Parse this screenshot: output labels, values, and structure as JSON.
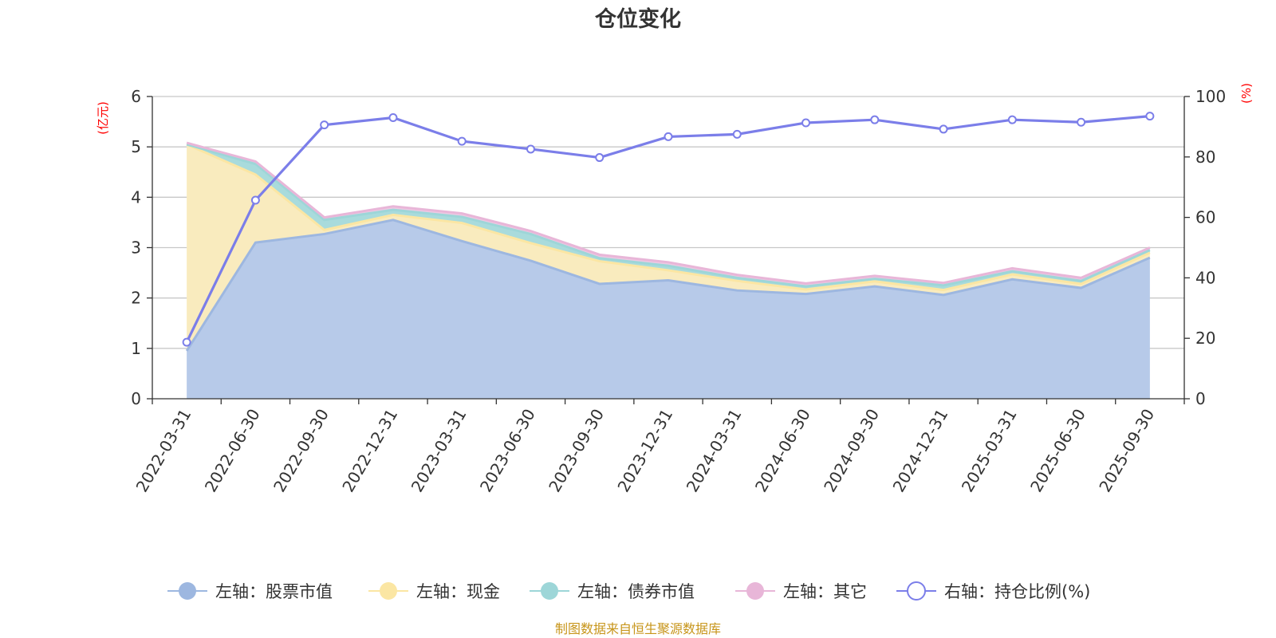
{
  "chart_data": {
    "type": "area",
    "title": "仓位变化",
    "source": "制图数据来自恒生聚源数据库",
    "categories": [
      "2022-03-31",
      "2022-06-30",
      "2022-09-30",
      "2022-12-31",
      "2023-03-31",
      "2023-06-30",
      "2023-09-30",
      "2023-12-31",
      "2024-03-31",
      "2024-06-30",
      "2024-09-30",
      "2024-12-31",
      "2025-03-31",
      "2025-06-30",
      "2025-09-30"
    ],
    "left_axis": {
      "unit": "(亿元)",
      "ylim": [
        0,
        6
      ],
      "ticks": [
        "0",
        "1",
        "2",
        "3",
        "4",
        "5",
        "6"
      ]
    },
    "right_axis": {
      "unit": "(%)",
      "ylim": [
        0,
        100
      ],
      "ticks": [
        "0",
        "20",
        "40",
        "60",
        "80",
        "100"
      ]
    },
    "series": [
      {
        "name": "左轴：股票市值",
        "axis": "left",
        "stack": true,
        "color": "#9db7e0",
        "fill": "#b7cae9",
        "values": [
          0.95,
          3.1,
          3.27,
          3.55,
          3.13,
          2.74,
          2.28,
          2.35,
          2.15,
          2.08,
          2.23,
          2.06,
          2.37,
          2.2,
          2.8
        ]
      },
      {
        "name": "左轴：现金",
        "axis": "left",
        "stack": true,
        "color": "#fbe6a3",
        "fill": "#f9ebbe",
        "values": [
          4.1,
          1.35,
          0.08,
          0.1,
          0.36,
          0.35,
          0.45,
          0.2,
          0.19,
          0.09,
          0.1,
          0.1,
          0.1,
          0.08,
          0.1
        ]
      },
      {
        "name": "左轴：债券市值",
        "axis": "left",
        "stack": true,
        "color": "#9dd6d8",
        "fill": "#a9dbdc",
        "values": [
          0.0,
          0.21,
          0.2,
          0.1,
          0.12,
          0.18,
          0.06,
          0.09,
          0.06,
          0.06,
          0.05,
          0.09,
          0.06,
          0.06,
          0.05
        ]
      },
      {
        "name": "左轴：其它",
        "axis": "left",
        "stack": true,
        "color": "#e8b6d8",
        "fill": "#eec9e3",
        "values": [
          0.03,
          0.05,
          0.05,
          0.07,
          0.07,
          0.06,
          0.07,
          0.07,
          0.06,
          0.06,
          0.06,
          0.05,
          0.06,
          0.06,
          0.05
        ]
      },
      {
        "name": "右轴：持仓比例(%)",
        "axis": "right",
        "stack": false,
        "color": "#7b7ee9",
        "values": [
          18.7,
          65.7,
          90.6,
          93.0,
          85.2,
          82.6,
          79.8,
          86.7,
          87.5,
          91.3,
          92.3,
          89.2,
          92.3,
          91.5,
          93.5
        ]
      }
    ]
  }
}
